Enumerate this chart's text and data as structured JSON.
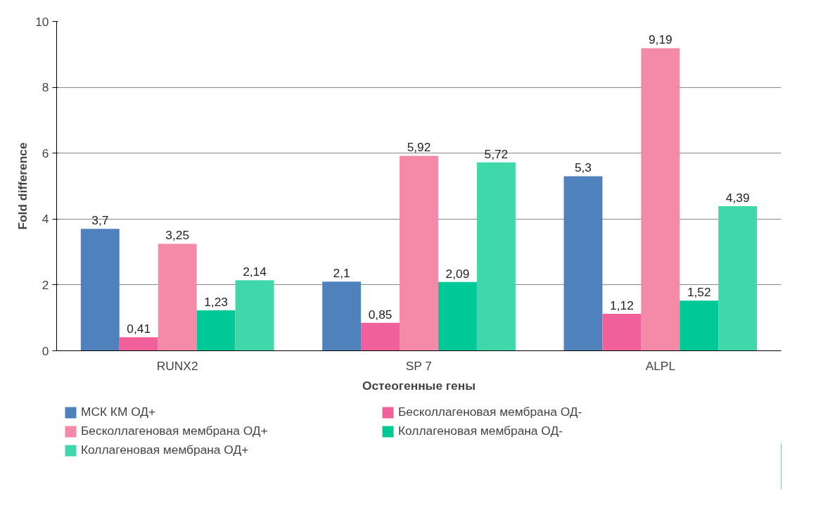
{
  "chart_data": {
    "type": "bar",
    "xlabel": "Остеогенные гены",
    "ylabel": "Fold difference",
    "categories": [
      "RUNX2",
      "SP 7",
      "ALPL"
    ],
    "series": [
      {
        "name": "МСК КМ ОД+",
        "color": "#4f81bd",
        "values": [
          3.7,
          2.1,
          5.3
        ],
        "value_labels": [
          "3,7",
          "2,1",
          "5,3"
        ]
      },
      {
        "name": "Бесколлагеновая мембрана ОД-",
        "color": "#f0609a",
        "values": [
          0.41,
          0.85,
          1.12
        ],
        "value_labels": [
          "0,41",
          "0,85",
          "1,12"
        ]
      },
      {
        "name": "Бесколлагеновая мембрана ОД+",
        "color": "#f48aa8",
        "values": [
          3.25,
          5.92,
          9.19
        ],
        "value_labels": [
          "3,25",
          "5,92",
          "9,19"
        ]
      },
      {
        "name": "Коллагеновая мембрана ОД-",
        "color": "#00c896",
        "values": [
          1.23,
          2.09,
          1.52
        ],
        "value_labels": [
          "1,23",
          "2,09",
          "1,52"
        ]
      },
      {
        "name": "Коллагеновая мембрана ОД+",
        "color": "#40d8aa",
        "values": [
          2.14,
          5.72,
          4.39
        ],
        "value_labels": [
          "2,14",
          "5,72",
          "4,39"
        ]
      }
    ],
    "ylim": [
      0,
      10
    ],
    "yticks": [
      0,
      2,
      4,
      6,
      8,
      10
    ],
    "grid": "y",
    "legend": "bottom"
  }
}
